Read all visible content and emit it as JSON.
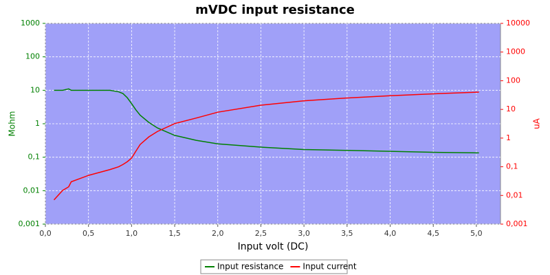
{
  "chart_data": {
    "type": "line",
    "title": "mVDC input resistance",
    "x_label": "Input volt (DC)",
    "y_label": "Mohm",
    "y2_label": "uA",
    "xlim": [
      0,
      5.28
    ],
    "xticks": [
      {
        "value": 0,
        "label": "0,0"
      },
      {
        "value": 0.5,
        "label": "0,5"
      },
      {
        "value": 1,
        "label": "1,0"
      },
      {
        "value": 1.5,
        "label": "1,5"
      },
      {
        "value": 2,
        "label": "2,0"
      },
      {
        "value": 2.5,
        "label": "2,5"
      },
      {
        "value": 3,
        "label": "3,0"
      },
      {
        "value": 3.5,
        "label": "3,5"
      },
      {
        "value": 4,
        "label": "4,0"
      },
      {
        "value": 4.5,
        "label": "4,5"
      },
      {
        "value": 5,
        "label": "5,0"
      }
    ],
    "ylim": [
      0.001,
      1000
    ],
    "yticks": [
      {
        "value": 0.001,
        "label": "0,001"
      },
      {
        "value": 0.01,
        "label": "0,01"
      },
      {
        "value": 0.1,
        "label": "0,1"
      },
      1,
      10,
      100,
      1000
    ],
    "y2lim": [
      0.001,
      10000
    ],
    "y2ticks": [
      {
        "value": 0.001,
        "label": "0,001"
      },
      {
        "value": 0.01,
        "label": "0,01"
      },
      {
        "value": 0.1,
        "label": "0,1"
      },
      1,
      10,
      100,
      1000,
      10000
    ],
    "log_scale": true,
    "grid": true,
    "legend_position": "bottom",
    "x": [
      0.1,
      0.2,
      0.27,
      0.3,
      0.5,
      0.75,
      0.85,
      0.9,
      0.95,
      1.0,
      1.05,
      1.1,
      1.2,
      1.3,
      1.5,
      1.75,
      2.0,
      2.5,
      3.0,
      3.5,
      4.0,
      4.5,
      5.03
    ],
    "series": [
      {
        "name": "Input resistance",
        "color": "#008000",
        "axis": "y",
        "values": [
          10,
          10,
          11,
          10,
          10,
          10,
          9,
          8,
          6,
          4,
          2.6,
          1.8,
          1.1,
          0.75,
          0.45,
          0.32,
          0.25,
          0.2,
          0.17,
          0.16,
          0.15,
          0.14,
          0.135
        ]
      },
      {
        "name": "Input current",
        "color": "#ff0000",
        "axis": "y2",
        "values": [
          0.007,
          0.015,
          0.02,
          0.03,
          0.05,
          0.08,
          0.1,
          0.12,
          0.15,
          0.2,
          0.35,
          0.6,
          1.1,
          1.7,
          3.2,
          5,
          8,
          14,
          20,
          25,
          30,
          35,
          40
        ]
      }
    ]
  }
}
